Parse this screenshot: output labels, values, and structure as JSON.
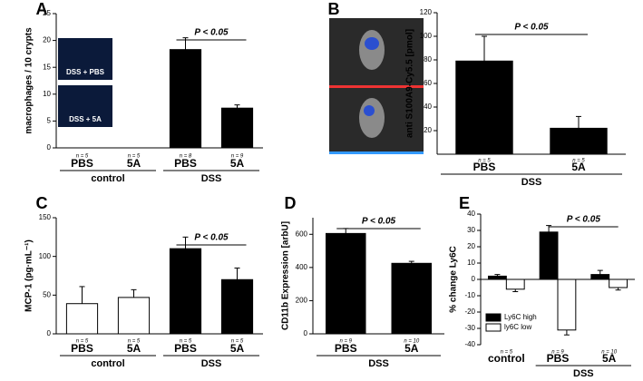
{
  "chart_data": [
    {
      "type": "bar",
      "panel": "A",
      "y_label": "macrophages / 10 crypts",
      "ylim": [
        0,
        25
      ],
      "yticks": [
        0,
        5,
        10,
        15,
        20,
        25
      ],
      "categories": [
        "PBS",
        "5A",
        "PBS",
        "5A"
      ],
      "n_labels": [
        "n = 5",
        "n = 5",
        "n = 8",
        "n = 9"
      ],
      "groups": [
        "control",
        "control",
        "DSS",
        "DSS"
      ],
      "values": [
        0,
        0,
        18.3,
        7.4
      ],
      "errors": [
        0,
        0,
        2.2,
        0.6
      ],
      "colors": [
        "#000000",
        "#000000",
        "#000000",
        "#000000"
      ],
      "annotation": "P < 0.05",
      "inset_labels": [
        "DSS + PBS",
        "DSS + 5A"
      ]
    },
    {
      "type": "bar",
      "panel": "B",
      "y_label": "anti S100A9-Cy5.5 [pmol]",
      "ylim": [
        0,
        120
      ],
      "yticks": [
        20,
        40,
        60,
        80,
        100,
        120
      ],
      "categories": [
        "PBS",
        "5A"
      ],
      "n_labels": [
        "n = 5",
        "n = 5"
      ],
      "groups": [
        "DSS",
        "DSS"
      ],
      "values": [
        79,
        22
      ],
      "errors": [
        21,
        10
      ],
      "colors": [
        "#000000",
        "#000000"
      ],
      "annotation": "P < 0.05"
    },
    {
      "type": "bar",
      "panel": "C",
      "y_label": "MCP-1 (pg·mL⁻¹)",
      "ylim": [
        0,
        150
      ],
      "yticks": [
        0,
        50,
        100,
        150
      ],
      "categories": [
        "PBS",
        "5A",
        "PBS",
        "5A"
      ],
      "n_labels": [
        "n = 5",
        "n = 5",
        "n = 5",
        "n = 5"
      ],
      "groups": [
        "control",
        "control",
        "DSS",
        "DSS"
      ],
      "values": [
        39,
        47,
        110,
        70
      ],
      "errors": [
        22,
        10,
        15,
        15
      ],
      "colors": [
        "#ffffff",
        "#ffffff",
        "#000000",
        "#000000"
      ],
      "annotation": "P < 0.05"
    },
    {
      "type": "bar",
      "panel": "D",
      "y_label": "CD11b Expression [arbU]",
      "ylim": [
        0,
        700
      ],
      "yticks": [
        0,
        200,
        400,
        600
      ],
      "categories": [
        "PBS",
        "5A"
      ],
      "n_labels": [
        "n = 9",
        "n = 10"
      ],
      "groups": [
        "DSS",
        "DSS"
      ],
      "values": [
        605,
        425
      ],
      "errors": [
        30,
        12
      ],
      "colors": [
        "#000000",
        "#000000"
      ],
      "annotation": "P < 0.05"
    },
    {
      "type": "grouped-bar",
      "panel": "E",
      "y_label": "% change Ly6C",
      "ylim": [
        -40,
        40
      ],
      "yticks": [
        -40,
        -30,
        -20,
        -10,
        0,
        10,
        20,
        30,
        40
      ],
      "categories": [
        "control",
        "PBS",
        "5A"
      ],
      "n_labels": [
        "n = 5",
        "n = 9",
        "n = 10"
      ],
      "groups": [
        null,
        "DSS",
        "DSS"
      ],
      "series": [
        {
          "name": "Ly6C high",
          "color": "#000000",
          "values": [
            2,
            29,
            3
          ],
          "errors": [
            1,
            4,
            2.5
          ]
        },
        {
          "name": "ly6C low",
          "color": "#ffffff",
          "values": [
            -6,
            -31,
            -5
          ],
          "errors": [
            1.5,
            3,
            1.5
          ]
        }
      ],
      "annotation": "P < 0.05"
    }
  ]
}
